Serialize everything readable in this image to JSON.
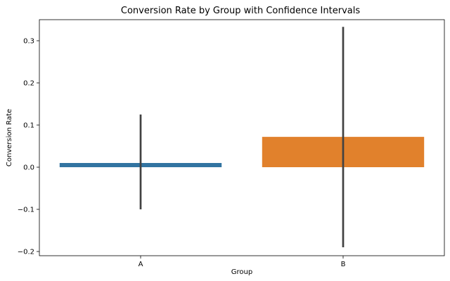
{
  "chart_data": {
    "type": "bar",
    "title": "Conversion Rate by Group with Confidence Intervals",
    "xlabel": "Group",
    "ylabel": "Conversion Rate",
    "categories": [
      "A",
      "B"
    ],
    "values": [
      0.01,
      0.072
    ],
    "ci_lower": [
      -0.1,
      -0.19
    ],
    "ci_upper": [
      0.125,
      0.333
    ],
    "colors": [
      "#3274a1",
      "#e1812c"
    ],
    "error_color": "#424242",
    "ylim": [
      -0.21,
      0.35
    ],
    "yticks": [
      -0.2,
      -0.1,
      0.0,
      0.1,
      0.2,
      0.3
    ],
    "ytick_labels": [
      "−0.2",
      "−0.1",
      "0.0",
      "0.1",
      "0.2",
      "0.3"
    ],
    "grid": false,
    "legend": "none"
  }
}
